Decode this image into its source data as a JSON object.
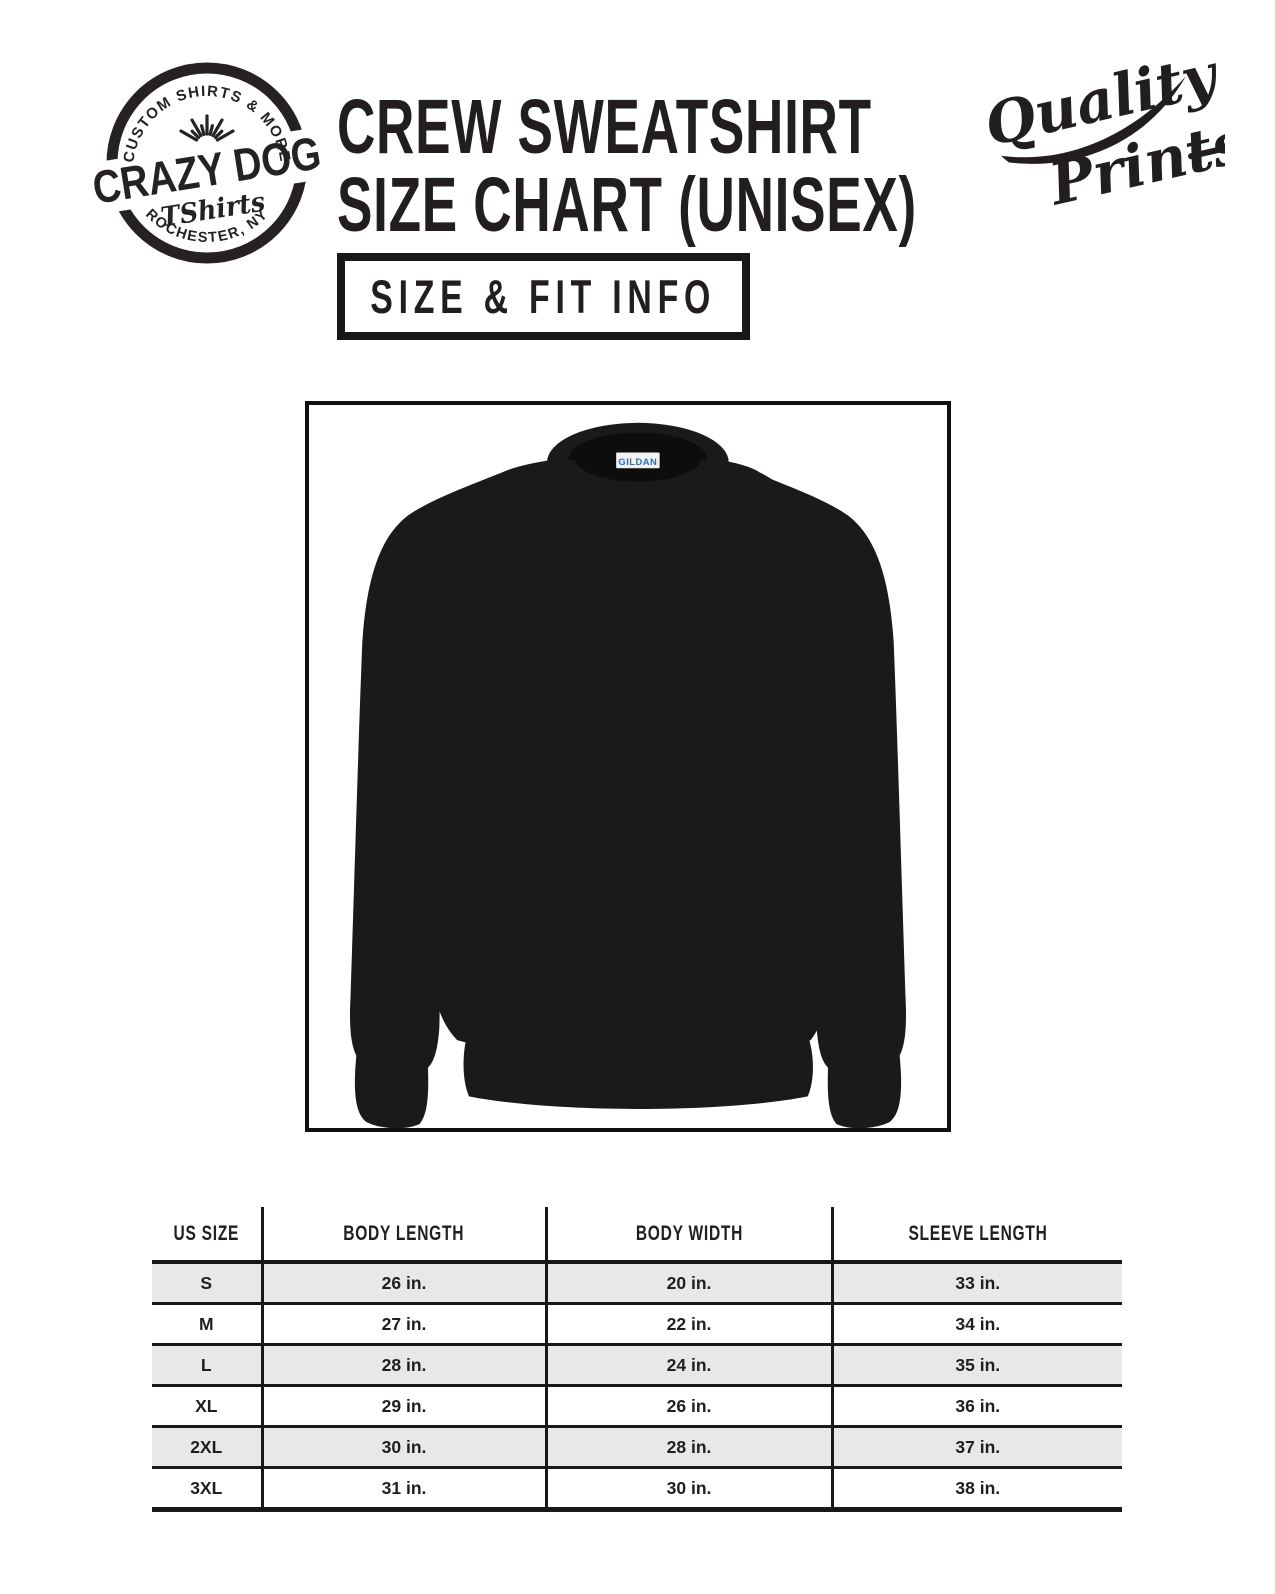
{
  "header": {
    "brand_badge": {
      "top_arc": "CUSTOM SHIRTS & MORE",
      "name_line": "CRAZY DOG",
      "script_line": "TShirts",
      "bottom_arc": "ROCHESTER, NY"
    },
    "title_line1": "CREW SWEATSHIRT",
    "title_line2": "SIZE CHART (UNISEX)",
    "quality_badge": {
      "line1": "Quality",
      "line2": "Prints"
    },
    "subtitle_box": "SIZE & FIT INFO"
  },
  "product": {
    "label_brand": "GILDAN",
    "garment_color": "#1b1919",
    "label_text_color": "#2f6db5"
  },
  "chart_data": {
    "type": "table",
    "title": "Crew Sweatshirt Size Chart (Unisex)",
    "columns": [
      "US SIZE",
      "BODY LENGTH",
      "BODY WIDTH",
      "SLEEVE LENGTH"
    ],
    "rows": [
      [
        "S",
        "26 in.",
        "20 in.",
        "33 in."
      ],
      [
        "M",
        "27 in.",
        "22 in.",
        "34 in."
      ],
      [
        "L",
        "28 in.",
        "24 in.",
        "35 in."
      ],
      [
        "XL",
        "29 in.",
        "26 in.",
        "36 in."
      ],
      [
        "2XL",
        "30 in.",
        "28 in.",
        "37 in."
      ],
      [
        "3XL",
        "31 in.",
        "30 in.",
        "38 in."
      ]
    ],
    "units": "inches",
    "zebra_row_color": "#e8e8e8",
    "line_color": "#1a1718"
  }
}
